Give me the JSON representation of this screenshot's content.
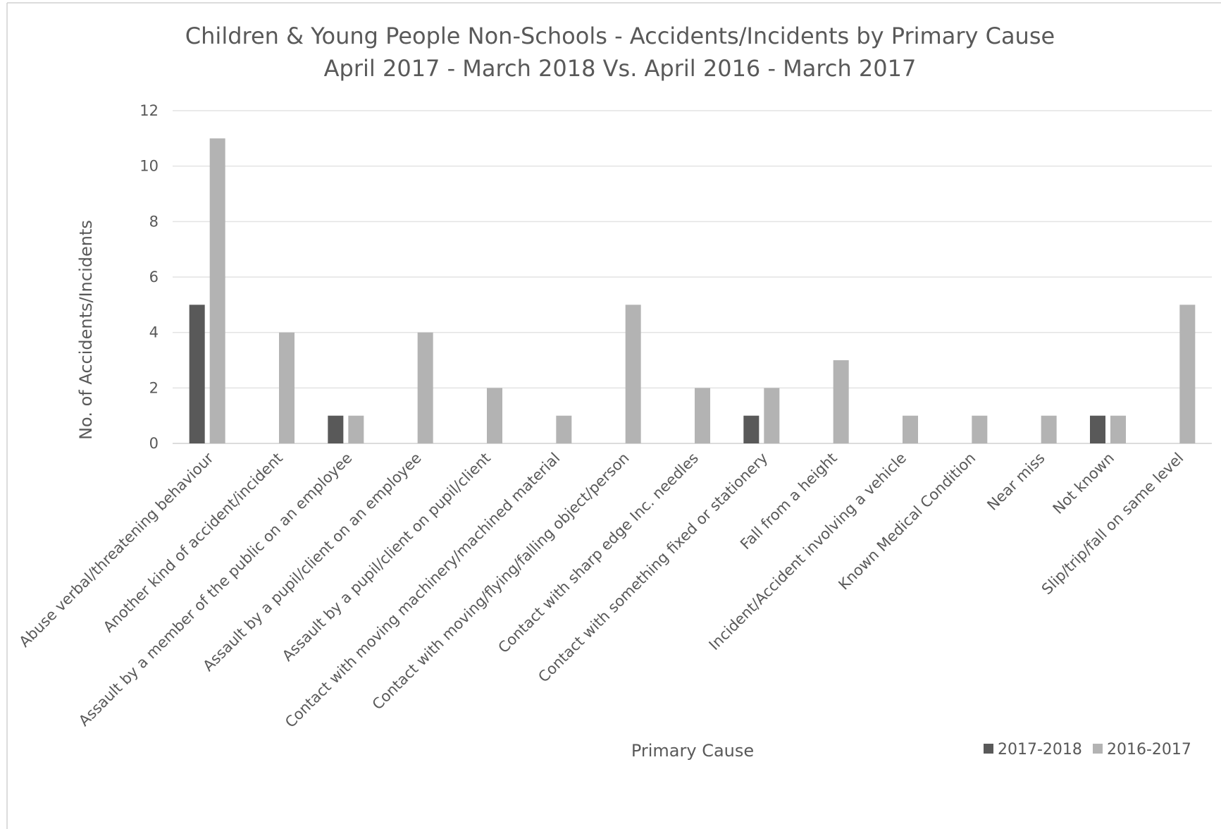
{
  "chart_data": {
    "type": "bar",
    "title": "Children & Young People Non-Schools - Accidents/Incidents by Primary Cause",
    "subtitle": "April 2017 - March 2018 Vs. April 2016 - March 2017",
    "xlabel": "Primary Cause",
    "ylabel": "No. of Accidents/Incidents",
    "ylim": [
      0,
      12
    ],
    "yticks": [
      0,
      2,
      4,
      6,
      8,
      10,
      12
    ],
    "grid": true,
    "legend_position": "bottom-right",
    "categories": [
      "Abuse verbal/threatening behaviour",
      "Another kind of accident/incident",
      "Assault by a member of the public on an employee",
      "Assault by a pupil/client on an employee",
      "Assault by a pupil/client on pupil/client",
      "Contact with moving machinery/machined material",
      "Contact with moving/flying/falling object/person",
      "Contact with sharp edge Inc. needles",
      "Contact with something fixed or stationery",
      "Fall from a height",
      "Incident/Accident involving a vehicle",
      "Known Medical Condition",
      "Near miss",
      "Not known",
      "Slip/trip/fall on same level"
    ],
    "series": [
      {
        "name": "2017-2018",
        "color": "#595959",
        "values": [
          5,
          0,
          1,
          0,
          0,
          0,
          0,
          0,
          1,
          0,
          0,
          0,
          0,
          1,
          0
        ]
      },
      {
        "name": "2016-2017",
        "color": "#b3b3b3",
        "values": [
          11,
          4,
          1,
          4,
          2,
          1,
          5,
          2,
          2,
          3,
          1,
          1,
          1,
          1,
          5
        ]
      }
    ]
  }
}
